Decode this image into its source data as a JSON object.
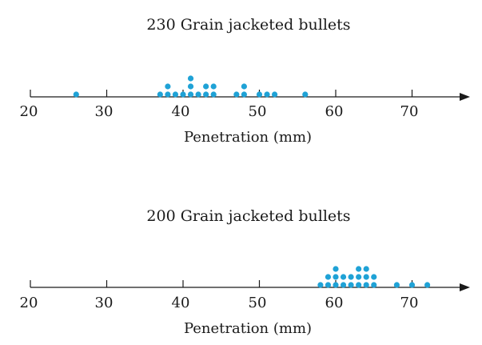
{
  "colors": {
    "dot": "#1fa2d6",
    "axis": "#1a1a1a"
  },
  "chart_data": [
    {
      "type": "scatter",
      "title": "230 Grain jacketed bullets",
      "xlabel": "Penetration (mm)",
      "ylabel": "",
      "xlim": [
        20,
        77
      ],
      "xticks": [
        20,
        30,
        40,
        50,
        60,
        70
      ],
      "grid": false,
      "values": [
        26,
        37,
        38,
        38,
        39,
        40,
        41,
        41,
        41,
        42,
        43,
        43,
        44,
        44,
        47,
        48,
        48,
        50,
        51,
        52,
        56
      ]
    },
    {
      "type": "scatter",
      "title": "200 Grain jacketed bullets",
      "xlabel": "Penetration (mm)",
      "ylabel": "",
      "xlim": [
        20,
        77
      ],
      "xticks": [
        20,
        30,
        40,
        50,
        60,
        70
      ],
      "grid": false,
      "values": [
        58,
        59,
        59,
        60,
        60,
        60,
        61,
        61,
        62,
        62,
        63,
        63,
        63,
        64,
        64,
        64,
        65,
        65,
        68,
        70,
        72
      ]
    }
  ]
}
